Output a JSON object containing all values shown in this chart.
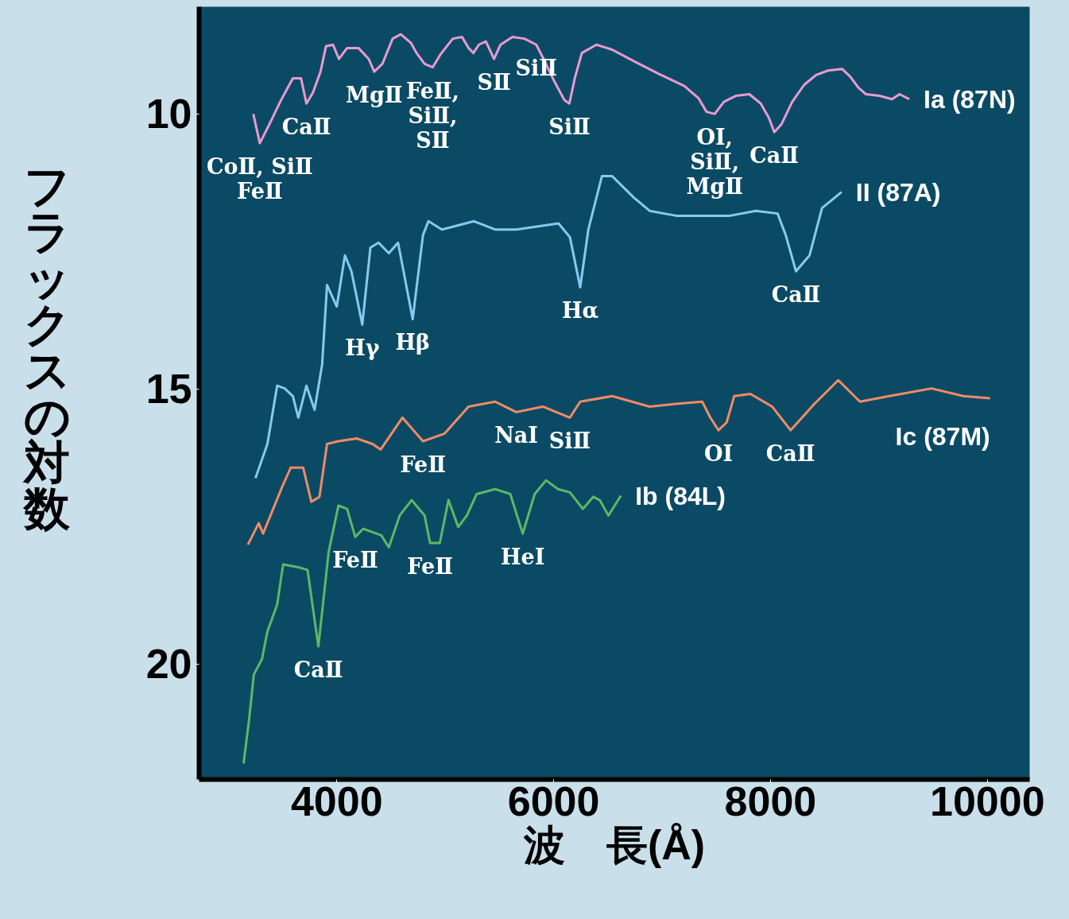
{
  "chart_data": {
    "type": "line",
    "xlabel": "波　長(Å)",
    "ylabel": "フラックスの対数",
    "xlim": [
      2730,
      10390
    ],
    "ylim": [
      22.1,
      8.05
    ],
    "xticks": [
      4000,
      6000,
      8000,
      10000
    ],
    "yticks": [
      10,
      15,
      20
    ],
    "series": [
      {
        "name": "Ia (87N)",
        "color": "#e99ad2",
        "x": [
          3230,
          3290,
          3370,
          3485,
          3595,
          3670,
          3720,
          3780,
          3850,
          3900,
          3965,
          4020,
          4095,
          4200,
          4295,
          4345,
          4420,
          4515,
          4590,
          4685,
          4735,
          4810,
          4885,
          4955,
          5070,
          5155,
          5215,
          5260,
          5310,
          5375,
          5450,
          5510,
          5620,
          5730,
          5840,
          5915,
          6010,
          6100,
          6145,
          6195,
          6260,
          6395,
          6540,
          6760,
          6980,
          7205,
          7335,
          7410,
          7485,
          7570,
          7680,
          7805,
          7910,
          7985,
          8035,
          8100,
          8200,
          8310,
          8420,
          8530,
          8660,
          8735,
          8810,
          8880,
          9005,
          9120,
          9190,
          9280
        ],
        "values": [
          10.0,
          10.53,
          10.22,
          9.75,
          9.35,
          9.35,
          9.81,
          9.61,
          9.23,
          8.77,
          8.74,
          9.0,
          8.8,
          8.8,
          9.0,
          9.23,
          9.09,
          8.63,
          8.55,
          8.71,
          8.89,
          9.09,
          9.15,
          8.92,
          8.63,
          8.6,
          8.8,
          8.89,
          8.74,
          8.68,
          9.0,
          8.74,
          8.6,
          8.63,
          8.74,
          9.03,
          9.42,
          9.75,
          9.81,
          9.35,
          8.89,
          8.74,
          8.83,
          9.06,
          9.28,
          9.49,
          9.71,
          9.96,
          10.0,
          9.78,
          9.67,
          9.64,
          9.81,
          10.07,
          10.33,
          10.19,
          9.78,
          9.47,
          9.29,
          9.21,
          9.18,
          9.32,
          9.52,
          9.64,
          9.67,
          9.73,
          9.64,
          9.73
        ]
      },
      {
        "name": "II (87A)",
        "color": "#84cbef",
        "x": [
          3250,
          3360,
          3450,
          3520,
          3595,
          3645,
          3720,
          3795,
          3865,
          3910,
          4000,
          4075,
          4135,
          4235,
          4310,
          4385,
          4480,
          4565,
          4700,
          4795,
          4845,
          4970,
          5265,
          5460,
          5655,
          6045,
          6150,
          6245,
          6320,
          6445,
          6540,
          6740,
          6885,
          7130,
          7625,
          7865,
          8065,
          8140,
          8235,
          8360,
          8475,
          8655
        ],
        "values": [
          16.62,
          16.0,
          14.94,
          14.99,
          15.13,
          15.52,
          14.94,
          15.38,
          14.55,
          13.11,
          13.5,
          12.57,
          12.86,
          13.83,
          12.43,
          12.34,
          12.53,
          12.34,
          13.73,
          12.2,
          11.95,
          12.1,
          11.95,
          12.1,
          12.1,
          11.99,
          12.24,
          13.15,
          12.1,
          11.13,
          11.13,
          11.52,
          11.76,
          11.85,
          11.85,
          11.76,
          11.81,
          12.2,
          12.86,
          12.57,
          11.71,
          11.42
        ]
      },
      {
        "name": "Ic (87M)",
        "color": "#f28b66",
        "x": [
          3180,
          3280,
          3320,
          3500,
          3575,
          3690,
          3765,
          3840,
          3910,
          4015,
          4185,
          4330,
          4405,
          4605,
          4795,
          4995,
          5215,
          5460,
          5655,
          5900,
          6150,
          6245,
          6540,
          6885,
          7130,
          7370,
          7445,
          7520,
          7595,
          7665,
          7815,
          8015,
          8185,
          8405,
          8625,
          8825,
          9095,
          9485,
          9780,
          10025
        ],
        "values": [
          17.83,
          17.44,
          17.63,
          16.76,
          16.43,
          16.43,
          17.05,
          16.96,
          16.0,
          15.95,
          15.9,
          16.0,
          16.1,
          15.52,
          15.95,
          15.81,
          15.32,
          15.23,
          15.42,
          15.32,
          15.52,
          15.23,
          15.13,
          15.32,
          15.27,
          15.23,
          15.52,
          15.75,
          15.61,
          15.13,
          15.09,
          15.32,
          15.75,
          15.27,
          14.84,
          15.23,
          15.13,
          14.99,
          15.13,
          15.17
        ]
      },
      {
        "name": "Ib (84L)",
        "color": "#5db865",
        "x": [
          3140,
          3190,
          3235,
          3310,
          3360,
          3450,
          3505,
          3645,
          3730,
          3830,
          3925,
          4015,
          4095,
          4170,
          4245,
          4410,
          4480,
          4580,
          4690,
          4810,
          4860,
          4950,
          5030,
          5120,
          5200,
          5290,
          5460,
          5600,
          5715,
          5825,
          5930,
          6040,
          6150,
          6270,
          6365,
          6425,
          6505,
          6620
        ],
        "values": [
          21.81,
          21.03,
          20.19,
          19.91,
          19.41,
          18.92,
          18.19,
          18.24,
          18.29,
          19.68,
          17.96,
          17.12,
          17.18,
          17.69,
          17.54,
          17.66,
          17.88,
          17.3,
          17.02,
          17.3,
          17.8,
          17.8,
          17.02,
          17.51,
          17.3,
          16.91,
          16.82,
          16.91,
          17.63,
          16.91,
          16.66,
          16.82,
          16.88,
          17.18,
          16.96,
          17.02,
          17.3,
          16.94
        ]
      }
    ],
    "annotations": [
      {
        "text": "CaⅡ",
        "x": 3720,
        "y": 9.81
      },
      {
        "text": "MgⅡ",
        "x": 4345,
        "y": 9.23
      },
      {
        "text": "SⅡ",
        "x": 5450,
        "y": 9.0
      },
      {
        "text": "FeⅡ,\nSiⅡ,\nSⅡ",
        "x": 4885,
        "y": 9.15
      },
      {
        "text": "SiⅡ",
        "x": 6145,
        "y": 9.81
      },
      {
        "text": "OI,\nSiⅡ,\nMgⅡ",
        "x": 7485,
        "y": 10.0
      },
      {
        "text": "CaⅡ",
        "x": 8035,
        "y": 10.33
      },
      {
        "text": "CoⅡ, SiⅡ\nFeⅡ",
        "x": 3290,
        "y": 10.53
      },
      {
        "text": "SiⅡ",
        "x": 5840,
        "y": 8.74
      },
      {
        "text": "Hγ",
        "x": 4235,
        "y": 13.83
      },
      {
        "text": "Hβ",
        "x": 4700,
        "y": 13.73
      },
      {
        "text": "Hα",
        "x": 6245,
        "y": 13.15
      },
      {
        "text": "CaⅡ",
        "x": 8235,
        "y": 12.86
      },
      {
        "text": "NaI",
        "x": 5655,
        "y": 15.42
      },
      {
        "text": "FeⅡ",
        "x": 4795,
        "y": 15.95
      },
      {
        "text": "SiⅡ",
        "x": 6150,
        "y": 15.52
      },
      {
        "text": "OI",
        "x": 7520,
        "y": 15.75
      },
      {
        "text": "CaⅡ",
        "x": 8185,
        "y": 15.75
      },
      {
        "text": "FeⅡ",
        "x": 4860,
        "y": 17.8
      },
      {
        "text": "HeI",
        "x": 5715,
        "y": 17.63
      },
      {
        "text": "FeⅡ",
        "x": 4170,
        "y": 17.69
      },
      {
        "text": "CaⅡ",
        "x": 3830,
        "y": 19.68
      }
    ]
  }
}
